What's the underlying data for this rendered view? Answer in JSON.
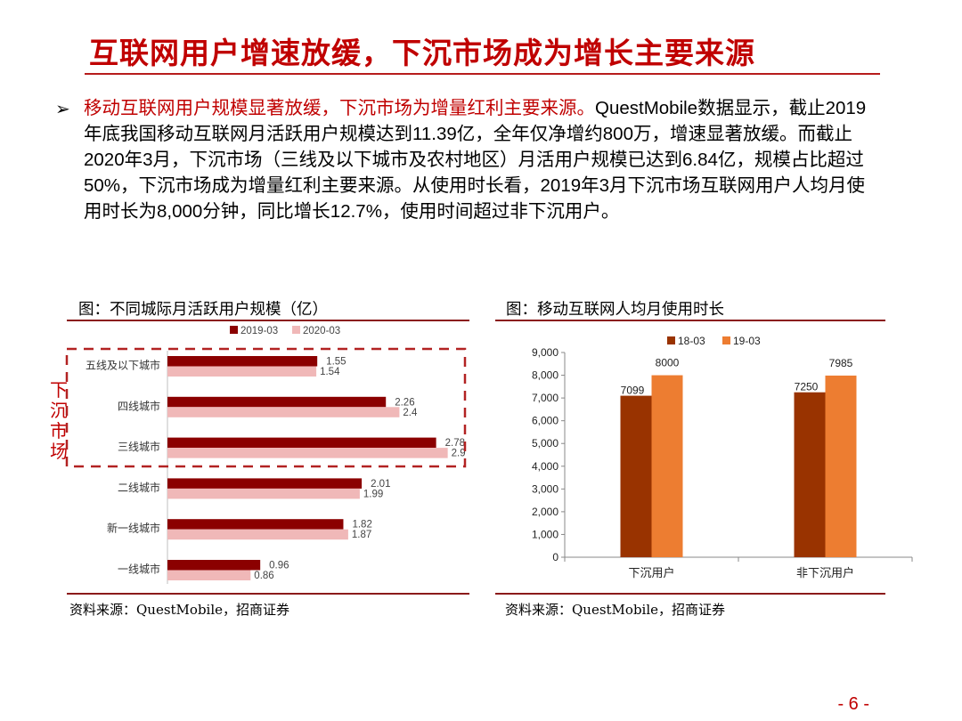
{
  "slide": {
    "title": "互联网用户增速放缓，下沉市场成为增长主要来源",
    "bullet_lead": "移动互联网用户规模显著放缓，下沉市场为增量红利主要来源。",
    "bullet_body": "QuestMobile数据显示，截止2019年底我国移动互联网月活跃用户规模达到11.39亿，全年仅净增约800万，增速显著放缓。而截止2020年3月，下沉市场（三线及以下城市及农村地区）月活用户规模已达到6.84亿，规模占比超过50%，下沉市场成为增量红利主要来源。从使用时长看，2019年3月下沉市场互联网用户人均月使用时长为8,000分钟，同比增长12.7%，使用时间超过非下沉用户。",
    "side_label": "下沉市场",
    "page_number": "- 6 -"
  },
  "left_panel": {
    "caption": "图：不同城际月活跃用户规模（亿）",
    "source": "资料来源：QuestMobile，招商证券"
  },
  "right_panel": {
    "caption": "图：移动互联网人均月使用时长",
    "source": "资料来源：QuestMobile，招商证券"
  },
  "chart_data": [
    {
      "type": "bar",
      "orientation": "horizontal",
      "categories": [
        "五线及以下城市",
        "四线城市",
        "三线城市",
        "二线城市",
        "新一线城市",
        "一线城市"
      ],
      "series": [
        {
          "name": "2019-03",
          "values": [
            1.55,
            2.26,
            2.78,
            2.01,
            1.82,
            0.96
          ],
          "color": "#8b0000"
        },
        {
          "name": "2020-03",
          "values": [
            1.54,
            2.4,
            2.9,
            1.99,
            1.87,
            0.86
          ],
          "color": "#f0b8b8"
        }
      ],
      "xlim": [
        0,
        3.2
      ],
      "legend_position": "top",
      "highlight": "dashed box around 五线及以下城市, 四线城市, 三线城市"
    },
    {
      "type": "bar",
      "orientation": "vertical",
      "categories": [
        "下沉用户",
        "非下沉用户"
      ],
      "series": [
        {
          "name": "18-03",
          "values": [
            7099,
            7250
          ],
          "color": "#993300"
        },
        {
          "name": "19-03",
          "values": [
            8000,
            7985
          ],
          "color": "#ed7d31"
        }
      ],
      "ylim": [
        0,
        9000
      ],
      "yticks": [
        "0",
        "1,000",
        "2,000",
        "3,000",
        "4,000",
        "5,000",
        "6,000",
        "7,000",
        "8,000",
        "9,000"
      ],
      "legend_position": "top-right",
      "grid": false
    }
  ]
}
